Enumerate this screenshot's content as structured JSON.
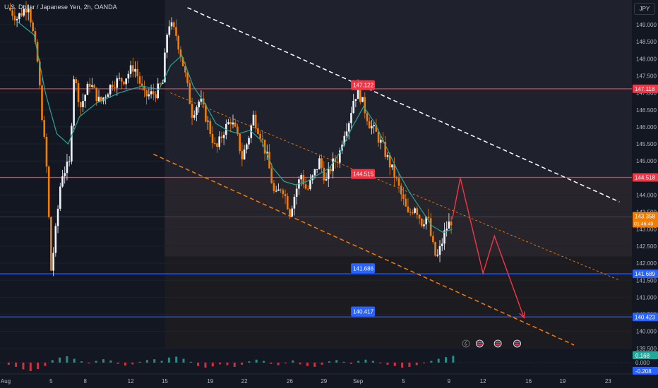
{
  "header": {
    "title": "U.S. Dollar / Japanese Yen, 2h, OANDA",
    "currency": "JPY"
  },
  "colors": {
    "background": "#131722",
    "up": "#f0f3fa",
    "down": "#f57c00",
    "ema": "#26a69a",
    "resistance": "#f23645",
    "support": "#2962ff",
    "channel_upper": "#ffffff",
    "channel_lower": "#f57c00",
    "projection": "#f23645"
  },
  "chart_data": {
    "type": "candlestick",
    "symbol": "USDJPY",
    "timeframe": "2h",
    "ylim": [
      139.5,
      149.6
    ],
    "price_ticks": [
      "149.000",
      "148.500",
      "148.000",
      "147.500",
      "147.000",
      "146.500",
      "146.000",
      "145.500",
      "145.000",
      "144.500",
      "144.000",
      "143.500",
      "143.000",
      "142.500",
      "142.000",
      "141.500",
      "141.000",
      "140.500",
      "140.000",
      "139.500"
    ],
    "date_ticks": [
      {
        "label": "Aug",
        "day": 1
      },
      {
        "label": "5",
        "day": 5
      },
      {
        "label": "8",
        "day": 8
      },
      {
        "label": "12",
        "day": 12
      },
      {
        "label": "15",
        "day": 15
      },
      {
        "label": "19",
        "day": 19
      },
      {
        "label": "22",
        "day": 22
      },
      {
        "label": "26",
        "day": 26
      },
      {
        "label": "29",
        "day": 29
      },
      {
        "label": "Sep",
        "day": 32
      },
      {
        "label": "5",
        "day": 36
      },
      {
        "label": "9",
        "day": 40
      },
      {
        "label": "12",
        "day": 43
      },
      {
        "label": "16",
        "day": 47
      },
      {
        "label": "19",
        "day": 50
      },
      {
        "label": "23",
        "day": 54
      }
    ],
    "price_path": [
      {
        "day": 1.2,
        "price": 149.5
      },
      {
        "day": 2.0,
        "price": 149.2
      },
      {
        "day": 3.0,
        "price": 149.6
      },
      {
        "day": 3.8,
        "price": 147.9
      },
      {
        "day": 4.6,
        "price": 144.8
      },
      {
        "day": 5.0,
        "price": 141.8
      },
      {
        "day": 5.3,
        "price": 142.6
      },
      {
        "day": 5.9,
        "price": 144.6
      },
      {
        "day": 6.6,
        "price": 144.9
      },
      {
        "day": 7.0,
        "price": 147.5
      },
      {
        "day": 7.6,
        "price": 146.6
      },
      {
        "day": 8.4,
        "price": 147.3
      },
      {
        "day": 9.3,
        "price": 146.7
      },
      {
        "day": 10.4,
        "price": 147.3
      },
      {
        "day": 11.4,
        "price": 147.4
      },
      {
        "day": 12.3,
        "price": 147.8
      },
      {
        "day": 13.2,
        "price": 146.9
      },
      {
        "day": 14.2,
        "price": 147.0
      },
      {
        "day": 14.8,
        "price": 147.3
      },
      {
        "day": 15.3,
        "price": 149.1
      },
      {
        "day": 16.0,
        "price": 148.7
      },
      {
        "day": 16.7,
        "price": 147.7
      },
      {
        "day": 17.4,
        "price": 146.4
      },
      {
        "day": 18.1,
        "price": 146.8
      },
      {
        "day": 18.8,
        "price": 146.1
      },
      {
        "day": 19.5,
        "price": 145.3
      },
      {
        "day": 20.2,
        "price": 145.9
      },
      {
        "day": 20.8,
        "price": 146.2
      },
      {
        "day": 21.3,
        "price": 145.8
      },
      {
        "day": 21.8,
        "price": 145.1
      },
      {
        "day": 22.3,
        "price": 145.6
      },
      {
        "day": 22.8,
        "price": 146.3
      },
      {
        "day": 23.4,
        "price": 145.8
      },
      {
        "day": 24.0,
        "price": 145.1
      },
      {
        "day": 24.7,
        "price": 143.9
      },
      {
        "day": 25.3,
        "price": 144.3
      },
      {
        "day": 26.0,
        "price": 143.5
      },
      {
        "day": 26.5,
        "price": 144.1
      },
      {
        "day": 27.0,
        "price": 144.6
      },
      {
        "day": 27.5,
        "price": 144.1
      },
      {
        "day": 28.0,
        "price": 144.5
      },
      {
        "day": 28.6,
        "price": 145.0
      },
      {
        "day": 29.2,
        "price": 144.4
      },
      {
        "day": 29.7,
        "price": 144.9
      },
      {
        "day": 30.3,
        "price": 145.1
      },
      {
        "day": 30.7,
        "price": 145.8
      },
      {
        "day": 31.2,
        "price": 146.2
      },
      {
        "day": 31.6,
        "price": 146.8
      },
      {
        "day": 32.0,
        "price": 147.1
      },
      {
        "day": 32.5,
        "price": 146.6
      },
      {
        "day": 33.0,
        "price": 146.1
      },
      {
        "day": 33.6,
        "price": 145.8
      },
      {
        "day": 34.2,
        "price": 145.4
      },
      {
        "day": 34.8,
        "price": 144.9
      },
      {
        "day": 35.3,
        "price": 144.5
      },
      {
        "day": 35.9,
        "price": 143.9
      },
      {
        "day": 36.4,
        "price": 143.4
      },
      {
        "day": 37.0,
        "price": 143.7
      },
      {
        "day": 37.6,
        "price": 143.2
      },
      {
        "day": 38.1,
        "price": 143.4
      },
      {
        "day": 38.5,
        "price": 142.6
      },
      {
        "day": 38.9,
        "price": 142.1
      },
      {
        "day": 39.3,
        "price": 142.5
      },
      {
        "day": 39.7,
        "price": 143.0
      },
      {
        "day": 40.3,
        "price": 143.3
      }
    ],
    "ema_path": [
      {
        "day": 2.0,
        "price": 149.1
      },
      {
        "day": 3.5,
        "price": 148.7
      },
      {
        "day": 4.5,
        "price": 147.0
      },
      {
        "day": 5.5,
        "price": 145.8
      },
      {
        "day": 6.5,
        "price": 145.5
      },
      {
        "day": 7.5,
        "price": 146.3
      },
      {
        "day": 9.0,
        "price": 146.7
      },
      {
        "day": 11.0,
        "price": 147.0
      },
      {
        "day": 13.0,
        "price": 147.2
      },
      {
        "day": 14.5,
        "price": 147.1
      },
      {
        "day": 15.5,
        "price": 147.8
      },
      {
        "day": 16.5,
        "price": 148.1
      },
      {
        "day": 17.5,
        "price": 147.2
      },
      {
        "day": 18.5,
        "price": 146.7
      },
      {
        "day": 19.5,
        "price": 146.1
      },
      {
        "day": 20.5,
        "price": 145.9
      },
      {
        "day": 21.5,
        "price": 145.8
      },
      {
        "day": 22.5,
        "price": 145.9
      },
      {
        "day": 23.5,
        "price": 145.6
      },
      {
        "day": 24.5,
        "price": 144.8
      },
      {
        "day": 25.5,
        "price": 144.4
      },
      {
        "day": 26.5,
        "price": 144.3
      },
      {
        "day": 27.5,
        "price": 144.4
      },
      {
        "day": 28.5,
        "price": 144.6
      },
      {
        "day": 29.5,
        "price": 144.8
      },
      {
        "day": 30.5,
        "price": 145.3
      },
      {
        "day": 31.5,
        "price": 146.0
      },
      {
        "day": 32.5,
        "price": 146.6
      },
      {
        "day": 33.5,
        "price": 146.1
      },
      {
        "day": 34.5,
        "price": 145.4
      },
      {
        "day": 35.5,
        "price": 144.7
      },
      {
        "day": 36.5,
        "price": 144.1
      },
      {
        "day": 37.5,
        "price": 143.6
      },
      {
        "day": 38.5,
        "price": 143.1
      },
      {
        "day": 39.5,
        "price": 142.9
      },
      {
        "day": 40.3,
        "price": 143.0
      }
    ],
    "horizontal_levels": [
      {
        "price": 147.118,
        "label": "147.118",
        "role": "resistance"
      },
      {
        "price": 144.518,
        "label": "144.518",
        "role": "resistance"
      },
      {
        "price": 141.689,
        "label": "141.689",
        "role": "support"
      },
      {
        "price": 140.423,
        "label": "140.423",
        "role": "support"
      }
    ],
    "level_annotations": [
      {
        "price": 147.122,
        "day": 32.0,
        "label": "147.122",
        "role": "resistance"
      },
      {
        "price": 144.515,
        "day": 32.0,
        "label": "144.515",
        "role": "resistance"
      },
      {
        "price": 141.686,
        "day": 32.0,
        "label": "141.686",
        "role": "support"
      },
      {
        "price": 140.417,
        "day": 32.0,
        "label": "140.417",
        "role": "support"
      }
    ],
    "current_price": {
      "price": 143.358,
      "label": "143.358",
      "countdown": "01:46:49"
    },
    "channel_upper": {
      "from": {
        "day": 17.0,
        "price": 149.5
      },
      "to": {
        "day": 55.0,
        "price": 143.8
      }
    },
    "channel_mid": {
      "from": {
        "day": 15.5,
        "price": 147.0
      },
      "to": {
        "day": 55.0,
        "price": 141.5
      }
    },
    "channel_lower": {
      "from": {
        "day": 14.0,
        "price": 145.2
      },
      "to": {
        "day": 51.0,
        "price": 139.6
      }
    },
    "projection": [
      {
        "day": 40.3,
        "price": 143.3
      },
      {
        "day": 41.0,
        "price": 144.5
      },
      {
        "day": 43.0,
        "price": 141.7
      },
      {
        "day": 44.0,
        "price": 142.8
      },
      {
        "day": 46.6,
        "price": 140.4
      }
    ],
    "oscillator": {
      "ticks": [
        "0.168",
        "0.000",
        "-0.208"
      ],
      "values": [
        -0.05,
        -0.1,
        -0.16,
        -0.2,
        -0.15,
        -0.08,
        0.06,
        0.12,
        0.15,
        0.09,
        0.03,
        -0.02,
        0.04,
        0.08,
        0.05,
        -0.03,
        -0.07,
        -0.04,
        0.02,
        0.06,
        0.08,
        0.04,
        0.12,
        0.14,
        0.09,
        0.02,
        -0.08,
        -0.12,
        -0.09,
        -0.04,
        -0.06,
        -0.1,
        -0.05,
        0.03,
        0.07,
        0.04,
        -0.03,
        -0.06,
        -0.02,
        0.05,
        -0.04,
        -0.08,
        -0.1,
        -0.05,
        0.03,
        0.06,
        0.02,
        -0.03,
        0.04,
        0.07,
        0.04,
        -0.02,
        -0.05,
        -0.08,
        -0.12,
        -0.1,
        -0.06,
        -0.02,
        0.04,
        0.09,
        0.13,
        0.16
      ]
    }
  }
}
